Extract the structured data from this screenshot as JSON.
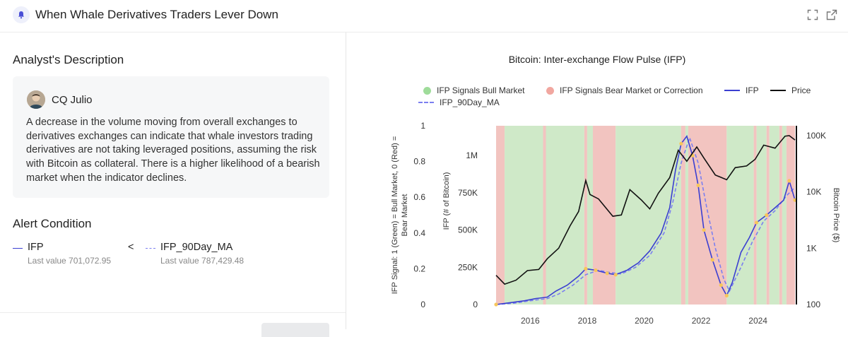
{
  "header": {
    "title": "When Whale Derivatives Traders Lever Down",
    "icons": [
      "bell-icon",
      "expand-icon",
      "external-link-icon"
    ]
  },
  "description": {
    "section_title": "Analyst's Description",
    "author": "CQ Julio",
    "text": "A decrease in the volume moving from overall exchanges to derivatives exchanges can indicate that whale investors trading derivatives are not taking leveraged positions, assuming the risk with Bitcoin as collateral. There is a higher likelihood of a bearish market when the indicator declines."
  },
  "alert": {
    "section_title": "Alert Condition",
    "left": {
      "name": "IFP",
      "last_value": "Last value 701,072.95"
    },
    "operator": "<",
    "right": {
      "name": "IFP_90Day_MA",
      "last_value": "Last value 787,429.48"
    }
  },
  "colors": {
    "ifp": "#3b3fd1",
    "ma": "#7b7ff0",
    "price": "#111111",
    "bull": "#cfe9c8",
    "bear": "#f2c4c0",
    "highlight": "#f7c65a",
    "legend_bull": "#9fdc9a",
    "legend_bear": "#f1a7a0"
  },
  "chart_data": {
    "type": "line",
    "title": "Bitcoin: Inter-exchange Flow Pulse (IFP)",
    "legend": [
      "IFP Signals Bull Market",
      "IFP Signals Bear Market or Correction",
      "IFP",
      "Price",
      "IFP_90Day_MA"
    ],
    "legend_placement": "top",
    "y_left_outer_label": "IFP Signal: 1 (Green) = Bull Market, 0 (Red) = Bear Market",
    "y_left_outer_ticks": [
      "0",
      "0.2",
      "0.4",
      "0.6",
      "0.8",
      "1"
    ],
    "y_left_label": "IFP (# of Bitcoin)",
    "y_left_ticks": [
      "0",
      "250K",
      "500K",
      "750K",
      "1M"
    ],
    "y_right_label": "Bitcoin Price ($)",
    "y_right_ticks": [
      "100",
      "1K",
      "10K",
      "100K"
    ],
    "y_right_scale": "log",
    "x_ticks": [
      "2016",
      "2018",
      "2020",
      "2022",
      "2024"
    ],
    "x_range": [
      2014.8,
      2025.3
    ],
    "y_left_range": [
      0,
      1200000
    ],
    "y_right_range": [
      100,
      150000
    ],
    "regions": [
      {
        "start": 2014.8,
        "end": 2015.1,
        "signal": "bear"
      },
      {
        "start": 2015.1,
        "end": 2016.45,
        "signal": "bull"
      },
      {
        "start": 2016.45,
        "end": 2016.55,
        "signal": "bear"
      },
      {
        "start": 2016.55,
        "end": 2017.9,
        "signal": "bull"
      },
      {
        "start": 2017.9,
        "end": 2018.0,
        "signal": "bear"
      },
      {
        "start": 2018.0,
        "end": 2018.2,
        "signal": "bull"
      },
      {
        "start": 2018.2,
        "end": 2019.0,
        "signal": "bear"
      },
      {
        "start": 2019.0,
        "end": 2021.3,
        "signal": "bull"
      },
      {
        "start": 2021.3,
        "end": 2021.45,
        "signal": "bear"
      },
      {
        "start": 2021.45,
        "end": 2021.55,
        "signal": "bull"
      },
      {
        "start": 2021.55,
        "end": 2022.9,
        "signal": "bear"
      },
      {
        "start": 2022.9,
        "end": 2023.85,
        "signal": "bull"
      },
      {
        "start": 2023.85,
        "end": 2023.95,
        "signal": "bear"
      },
      {
        "start": 2023.95,
        "end": 2024.3,
        "signal": "bull"
      },
      {
        "start": 2024.3,
        "end": 2024.4,
        "signal": "bear"
      },
      {
        "start": 2024.4,
        "end": 2024.75,
        "signal": "bull"
      },
      {
        "start": 2024.75,
        "end": 2024.85,
        "signal": "bear"
      },
      {
        "start": 2024.85,
        "end": 2025.0,
        "signal": "bull"
      },
      {
        "start": 2025.0,
        "end": 2025.3,
        "signal": "bear"
      }
    ],
    "ifp": [
      [
        2014.8,
        0
      ],
      [
        2015.2,
        10000
      ],
      [
        2015.8,
        25000
      ],
      [
        2016.2,
        40000
      ],
      [
        2016.6,
        50000
      ],
      [
        2016.9,
        90000
      ],
      [
        2017.3,
        130000
      ],
      [
        2017.7,
        190000
      ],
      [
        2017.95,
        240000
      ],
      [
        2018.3,
        230000
      ],
      [
        2018.7,
        210000
      ],
      [
        2019.0,
        200000
      ],
      [
        2019.4,
        230000
      ],
      [
        2019.8,
        280000
      ],
      [
        2020.2,
        360000
      ],
      [
        2020.6,
        480000
      ],
      [
        2020.9,
        650000
      ],
      [
        2021.1,
        900000
      ],
      [
        2021.3,
        1080000
      ],
      [
        2021.5,
        1130000
      ],
      [
        2021.7,
        1000000
      ],
      [
        2021.9,
        800000
      ],
      [
        2022.1,
        500000
      ],
      [
        2022.4,
        300000
      ],
      [
        2022.7,
        130000
      ],
      [
        2022.9,
        60000
      ],
      [
        2023.1,
        150000
      ],
      [
        2023.4,
        350000
      ],
      [
        2023.7,
        450000
      ],
      [
        2023.95,
        550000
      ],
      [
        2024.3,
        600000
      ],
      [
        2024.6,
        650000
      ],
      [
        2024.9,
        700000
      ],
      [
        2025.1,
        830000
      ],
      [
        2025.3,
        701073
      ]
    ],
    "ifp_90day_ma": [
      [
        2014.8,
        0
      ],
      [
        2015.4,
        8000
      ],
      [
        2016.0,
        25000
      ],
      [
        2016.6,
        40000
      ],
      [
        2017.0,
        70000
      ],
      [
        2017.5,
        130000
      ],
      [
        2017.95,
        200000
      ],
      [
        2018.4,
        230000
      ],
      [
        2018.8,
        215000
      ],
      [
        2019.2,
        205000
      ],
      [
        2019.7,
        250000
      ],
      [
        2020.2,
        330000
      ],
      [
        2020.7,
        480000
      ],
      [
        2021.0,
        680000
      ],
      [
        2021.3,
        950000
      ],
      [
        2021.6,
        1120000
      ],
      [
        2021.9,
        950000
      ],
      [
        2022.2,
        650000
      ],
      [
        2022.5,
        380000
      ],
      [
        2022.8,
        170000
      ],
      [
        2023.0,
        90000
      ],
      [
        2023.4,
        250000
      ],
      [
        2023.8,
        420000
      ],
      [
        2024.2,
        560000
      ],
      [
        2024.6,
        630000
      ],
      [
        2025.0,
        730000
      ],
      [
        2025.3,
        787429
      ]
    ],
    "price": [
      [
        2014.8,
        330
      ],
      [
        2015.1,
        230
      ],
      [
        2015.5,
        270
      ],
      [
        2015.9,
        400
      ],
      [
        2016.3,
        420
      ],
      [
        2016.6,
        650
      ],
      [
        2017.0,
        1000
      ],
      [
        2017.4,
        2500
      ],
      [
        2017.7,
        4500
      ],
      [
        2017.95,
        16000
      ],
      [
        2018.1,
        9000
      ],
      [
        2018.4,
        7500
      ],
      [
        2018.9,
        3700
      ],
      [
        2019.2,
        3900
      ],
      [
        2019.5,
        11000
      ],
      [
        2019.9,
        7200
      ],
      [
        2020.2,
        5000
      ],
      [
        2020.5,
        9500
      ],
      [
        2020.9,
        18000
      ],
      [
        2021.2,
        55000
      ],
      [
        2021.5,
        35000
      ],
      [
        2021.85,
        63000
      ],
      [
        2022.1,
        40000
      ],
      [
        2022.5,
        20000
      ],
      [
        2022.9,
        16500
      ],
      [
        2023.2,
        27000
      ],
      [
        2023.6,
        29000
      ],
      [
        2023.9,
        38000
      ],
      [
        2024.2,
        68000
      ],
      [
        2024.6,
        60000
      ],
      [
        2024.95,
        98000
      ],
      [
        2025.1,
        100000
      ],
      [
        2025.3,
        84000
      ]
    ]
  }
}
